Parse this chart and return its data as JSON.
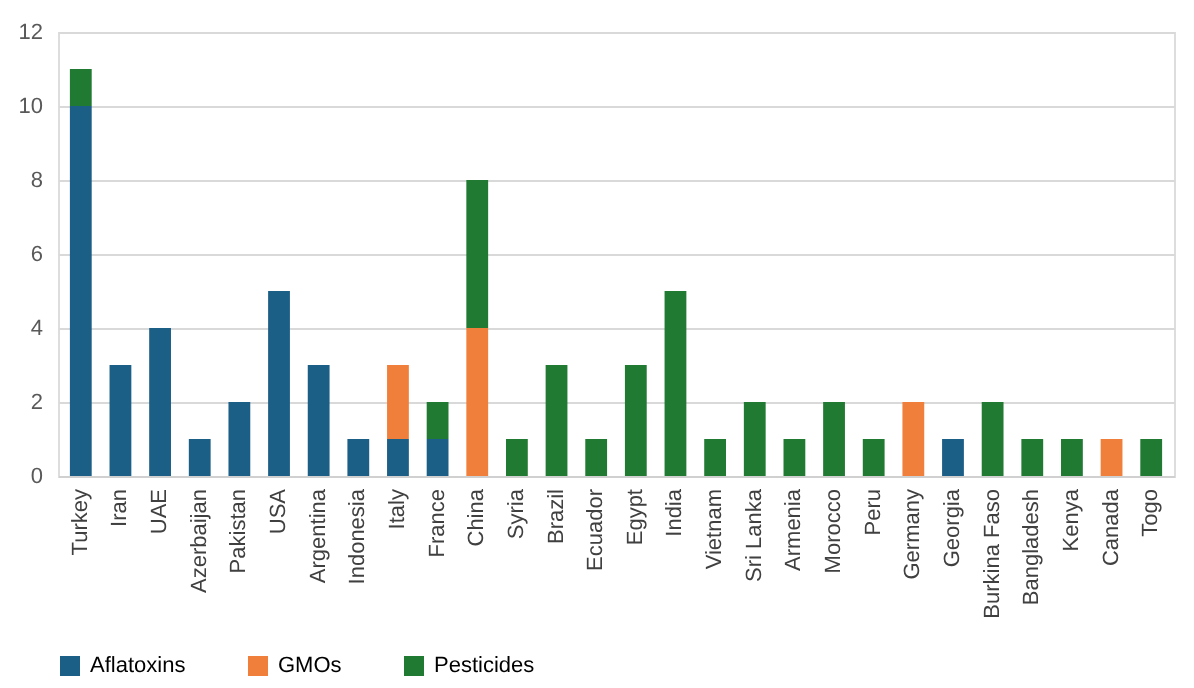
{
  "chart_data": {
    "type": "bar",
    "stacked": true,
    "categories": [
      "Turkey",
      "Iran",
      "UAE",
      "Azerbaijan",
      "Pakistan",
      "USA",
      "Argentina",
      "Indonesia",
      "Italy",
      "France",
      "China",
      "Syria",
      "Brazil",
      "Ecuador",
      "Egypt",
      "India",
      "Vietnam",
      "Sri Lanka",
      "Armenia",
      "Morocco",
      "Peru",
      "Germany",
      "Georgia",
      "Burkina Faso",
      "Bangladesh",
      "Kenya",
      "Canada",
      "Togo"
    ],
    "series": [
      {
        "name": "Aflatoxins",
        "color": "#1b5e86",
        "values": [
          10,
          3,
          4,
          1,
          2,
          5,
          3,
          1,
          1,
          1,
          null,
          null,
          null,
          null,
          null,
          null,
          null,
          null,
          null,
          null,
          null,
          null,
          1,
          null,
          null,
          null,
          null,
          null
        ]
      },
      {
        "name": "GMOs",
        "color": "#f07f3c",
        "values": [
          null,
          null,
          null,
          null,
          null,
          null,
          null,
          null,
          2,
          null,
          4,
          null,
          null,
          null,
          null,
          null,
          null,
          null,
          null,
          null,
          null,
          2,
          null,
          null,
          null,
          null,
          1,
          null
        ]
      },
      {
        "name": "Pesticides",
        "color": "#217a32",
        "values": [
          1,
          null,
          null,
          null,
          null,
          null,
          null,
          null,
          null,
          1,
          4,
          1,
          3,
          1,
          3,
          5,
          1,
          2,
          1,
          2,
          1,
          null,
          null,
          2,
          1,
          1,
          null,
          1
        ]
      }
    ],
    "ylim": [
      0,
      12
    ],
    "yticks": [
      0,
      2,
      4,
      6,
      8,
      10,
      12
    ],
    "grid": "y",
    "legend": "bottom"
  }
}
